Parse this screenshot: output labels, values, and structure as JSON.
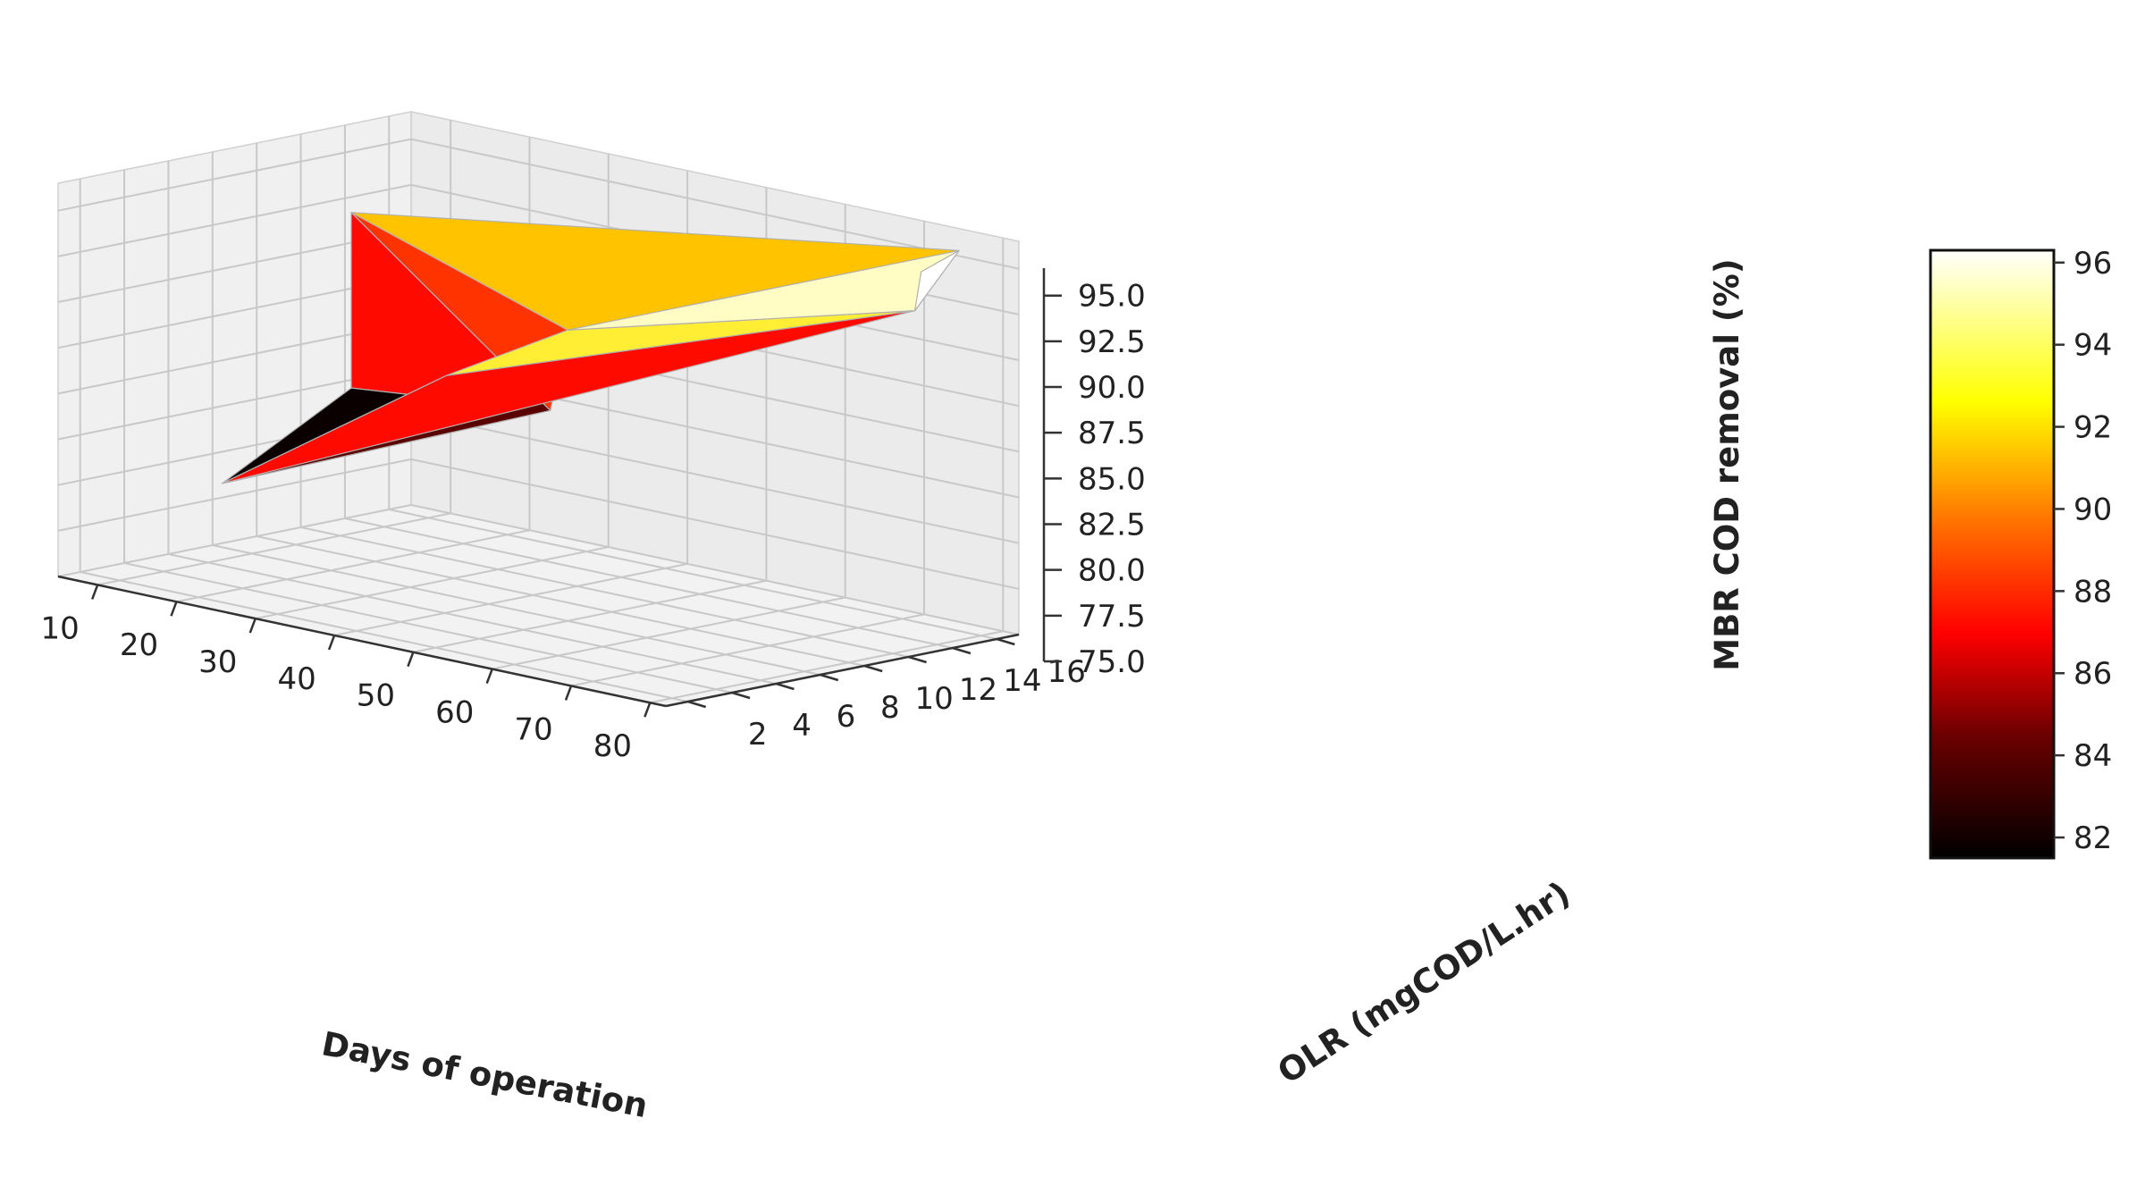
{
  "chart_data": {
    "type": "surface3d",
    "xlabel": "Days of operation",
    "ylabel": "OLR (mgCOD/L.hr)",
    "zlabel": "MBR COD removal (%)",
    "x_ticks": [
      10,
      20,
      30,
      40,
      50,
      60,
      70,
      80
    ],
    "y_ticks": [
      2,
      4,
      6,
      8,
      10,
      12,
      14,
      16
    ],
    "z_ticks": [
      "75.0",
      "77.5",
      "80.0",
      "82.5",
      "85.0",
      "87.5",
      "90.0",
      "92.5",
      "95.0"
    ],
    "xlim": [
      5,
      82
    ],
    "ylim": [
      1,
      17
    ],
    "zlim": [
      75,
      96.5
    ],
    "colormap": "hot",
    "colorbar": {
      "ticks": [
        82,
        84,
        86,
        88,
        90,
        92,
        94,
        96
      ],
      "range": [
        81.5,
        96.3
      ]
    },
    "points": [
      {
        "day": 23,
        "olr": 2,
        "removal": 81.5
      },
      {
        "day": 3,
        "olr": 15,
        "removal": 81.7
      },
      {
        "day": 3,
        "olr": 15,
        "removal": 91.3
      },
      {
        "day": 45,
        "olr": 9,
        "removal": 85.8
      },
      {
        "day": 43,
        "olr": 5,
        "removal": 88.5
      },
      {
        "day": 50,
        "olr": 8,
        "removal": 90.9
      },
      {
        "day": 80,
        "olr": 13,
        "removal": 93.5
      },
      {
        "day": 80,
        "olr": 15,
        "removal": 96.3
      },
      {
        "day": 78,
        "olr": 14,
        "removal": 95.2
      }
    ],
    "triangles": [
      {
        "v": [
          1,
          2,
          3
        ],
        "color": "#ff0a00"
      },
      {
        "v": [
          0,
          1,
          3
        ],
        "color": "#0a0000"
      },
      {
        "v": [
          0,
          3,
          5
        ],
        "color": "#5a0000"
      },
      {
        "v": [
          0,
          5,
          4
        ],
        "color": "#9a0000"
      },
      {
        "v": [
          2,
          3,
          5
        ],
        "color": "#ff3300"
      },
      {
        "v": [
          2,
          5,
          7
        ],
        "color": "#ffc300"
      },
      {
        "v": [
          5,
          4,
          6
        ],
        "color": "#ffee33"
      },
      {
        "v": [
          5,
          6,
          7
        ],
        "color": "#fffcc4"
      },
      {
        "v": [
          7,
          6,
          8
        ],
        "color": "#ffffff"
      },
      {
        "v": [
          0,
          4,
          6
        ],
        "color": "#ff0a00"
      }
    ]
  }
}
